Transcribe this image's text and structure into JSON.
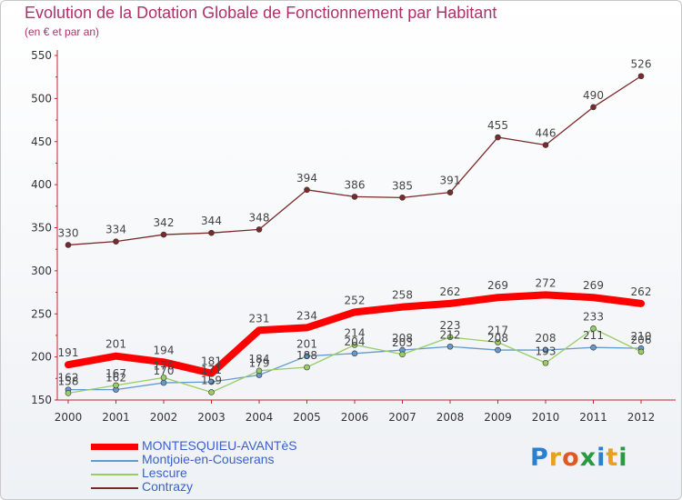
{
  "title": "Evolution de la Dotation Globale de Fonctionnement par Habitant",
  "subtitle": "(en € et par an)",
  "logo": "Proxiti",
  "colors": {
    "title": "#b0306a",
    "axis": "#c0282a",
    "montesquieu": "#ff0000",
    "montjoie": "#6699cc",
    "lescure": "#99cc66",
    "contrazy": "#7a2a2a"
  },
  "chart_data": {
    "type": "line",
    "title": "Evolution de la Dotation Globale de Fonctionnement par Habitant",
    "subtitle": "(en € et par an)",
    "xlabel": "",
    "ylabel": "",
    "ylim": [
      150,
      550
    ],
    "yticks": [
      150,
      200,
      250,
      300,
      350,
      400,
      450,
      500,
      550
    ],
    "categories": [
      "2000",
      "2001",
      "2002",
      "2003",
      "2004",
      "2005",
      "2006",
      "2007",
      "2008",
      "2009",
      "2010",
      "2011",
      "2012"
    ],
    "series": [
      {
        "name": "MONTESQUIEU-AVANTèS",
        "color": "#ff0000",
        "values": [
          191,
          201,
          194,
          181,
          231,
          234,
          252,
          258,
          262,
          269,
          272,
          269,
          262
        ]
      },
      {
        "name": "Montjoie-en-Couserans",
        "color": "#6699cc",
        "values": [
          162,
          162,
          170,
          171,
          179,
          201,
          204,
          208,
          212,
          208,
          208,
          211,
          210
        ]
      },
      {
        "name": "Lescure",
        "color": "#99cc66",
        "values": [
          158,
          167,
          176,
          159,
          184,
          188,
          214,
          203,
          223,
          217,
          193,
          233,
          206
        ]
      },
      {
        "name": "Contrazy",
        "color": "#7a2a2a",
        "values": [
          330,
          334,
          342,
          344,
          348,
          394,
          386,
          385,
          391,
          455,
          446,
          490,
          526
        ]
      }
    ],
    "data_labels": [
      {
        "series": 0,
        "values": [
          "191",
          "201",
          "194",
          "181",
          "231",
          "234",
          "252",
          "258",
          "262",
          "269",
          "272",
          "269",
          "262"
        ]
      },
      {
        "series": 1,
        "values": [
          "162",
          "162",
          "170",
          "171",
          "179",
          "201",
          "204",
          "208",
          "212",
          "208",
          "208",
          "211",
          "210"
        ]
      },
      {
        "series": 2,
        "values": [
          "158",
          "167",
          "176",
          "159",
          "184",
          "188",
          "214",
          "203",
          "223",
          "217",
          "193",
          "233",
          "206"
        ]
      },
      {
        "series": 3,
        "values": [
          "330",
          "334",
          "342",
          "344",
          "348",
          "394",
          "386",
          "385",
          "391",
          "455",
          "446",
          "490",
          "526"
        ]
      }
    ],
    "legend_position": "bottom-left",
    "grid": false
  },
  "legend": {
    "items": [
      {
        "label": "MONTESQUIEU-AVANTèS",
        "color": "#ff0000"
      },
      {
        "label": "Montjoie-en-Couserans",
        "color": "#6699cc"
      },
      {
        "label": "Lescure",
        "color": "#99cc66"
      },
      {
        "label": "Contrazy",
        "color": "#7a2a2a"
      }
    ]
  }
}
